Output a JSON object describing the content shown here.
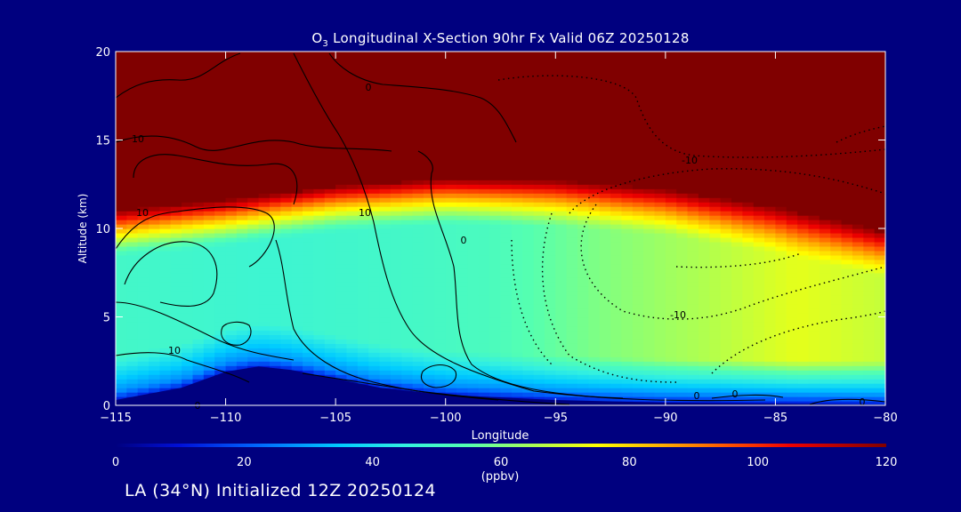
{
  "chart_data": {
    "type": "heatmap",
    "title": "O3 Longitudinal X-Section 90hr  Fx Valid 06Z 20250128",
    "title_parts": {
      "pre": "O",
      "sub": "3",
      "post": " Longitudinal X-Section 90hr  Fx Valid 06Z 20250128"
    },
    "xlabel": "Longitude",
    "ylabel": "Altitude (km)",
    "xlim": [
      -115,
      -80
    ],
    "ylim": [
      0,
      20
    ],
    "x_ticks": [
      -115,
      -110,
      -105,
      -100,
      -95,
      -90,
      -85,
      -80
    ],
    "x_tick_labels": [
      "−115",
      "−110",
      "−105",
      "−100",
      "−95",
      "−90",
      "−85",
      "−80"
    ],
    "y_ticks": [
      0,
      5,
      10,
      15,
      20
    ],
    "y_tick_labels": [
      "0",
      "5",
      "10",
      "15",
      "20"
    ],
    "colorbar": {
      "min": 0,
      "max": 120,
      "ticks": [
        0,
        20,
        40,
        60,
        80,
        100,
        120
      ],
      "tick_labels": [
        "0",
        "20",
        "40",
        "60",
        "80",
        "100",
        "120"
      ],
      "units": "(ppbv)",
      "stops": [
        {
          "v": 0,
          "c": "#00007f"
        },
        {
          "v": 10,
          "c": "#0010d8"
        },
        {
          "v": 22,
          "c": "#0066ff"
        },
        {
          "v": 35,
          "c": "#00ccff"
        },
        {
          "v": 45,
          "c": "#33f0e0"
        },
        {
          "v": 55,
          "c": "#55ffb0"
        },
        {
          "v": 65,
          "c": "#aaff55"
        },
        {
          "v": 75,
          "c": "#ffff00"
        },
        {
          "v": 85,
          "c": "#ffb000"
        },
        {
          "v": 95,
          "c": "#ff5500"
        },
        {
          "v": 105,
          "c": "#ee0000"
        },
        {
          "v": 120,
          "c": "#800000"
        }
      ]
    },
    "field_description_points": {
      "tropopause_height_km": [
        {
          "lon": -115,
          "z": 10.6
        },
        {
          "lon": -110,
          "z": 11.2
        },
        {
          "lon": -105,
          "z": 12.0
        },
        {
          "lon": -100,
          "z": 12.4
        },
        {
          "lon": -95,
          "z": 12.3
        },
        {
          "lon": -90,
          "z": 11.8
        },
        {
          "lon": -85,
          "z": 10.8
        },
        {
          "lon": -80,
          "z": 9.4
        }
      ],
      "terrain_km": [
        {
          "lon": -115,
          "z": 0.3
        },
        {
          "lon": -112,
          "z": 1.0
        },
        {
          "lon": -110,
          "z": 1.9
        },
        {
          "lon": -108.5,
          "z": 2.2
        },
        {
          "lon": -107,
          "z": 2.0
        },
        {
          "lon": -105,
          "z": 1.5
        },
        {
          "lon": -103,
          "z": 1.0
        },
        {
          "lon": -100,
          "z": 0.6
        },
        {
          "lon": -95,
          "z": 0.3
        },
        {
          "lon": -90,
          "z": 0.15
        },
        {
          "lon": -80,
          "z": 0.05
        }
      ],
      "free_trop_ppbv": [
        {
          "lon": -115,
          "v": 50
        },
        {
          "lon": -108,
          "v": 48
        },
        {
          "lon": -102,
          "v": 50
        },
        {
          "lon": -98,
          "v": 52
        },
        {
          "lon": -93,
          "v": 60
        },
        {
          "lon": -88,
          "v": 66
        },
        {
          "lon": -84,
          "v": 72
        },
        {
          "lon": -80,
          "v": 68
        }
      ]
    },
    "contours": {
      "labels": [
        "0",
        "10",
        "10",
        "10",
        "0",
        "10",
        "-10",
        "-10",
        "0",
        "0",
        "0",
        "0"
      ]
    }
  },
  "footer": "LA (34°N) Initialized 12Z 20250124"
}
